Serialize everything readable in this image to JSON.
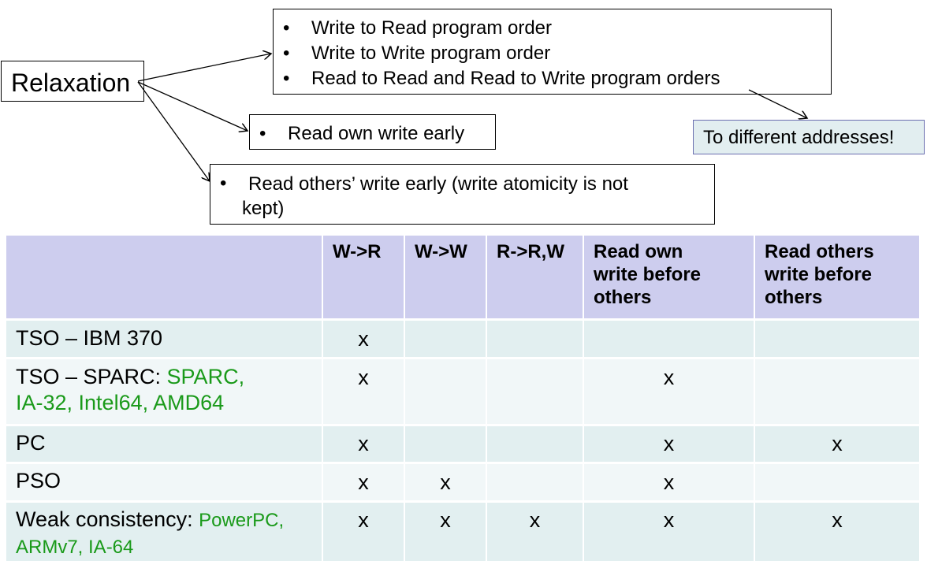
{
  "relaxation_label": "Relaxation",
  "bullet_char": "•",
  "box1": {
    "items": [
      "Write to Read program order",
      "Write to Write program order",
      "Read to Read and Read to Write program orders"
    ]
  },
  "box2": {
    "items": [
      "Read own write early"
    ]
  },
  "box3": {
    "line1": "Read others’ write early (write atomicity is not",
    "line2": "kept)"
  },
  "note": "To different addresses!",
  "colors": {
    "header_bg": "#cdcdee",
    "row_dark": "#e2eff0",
    "row_light": "#f1f7f8",
    "highlight_green": "#1a9a1a",
    "note_bg": "#e2eef0"
  },
  "table": {
    "headers": [
      "",
      "W->R",
      "W->W",
      "R->R,W",
      "Read own write before others",
      "Read others write before others"
    ],
    "header_lines": {
      "col4": [
        "Read own",
        "write before",
        "others"
      ],
      "col5": [
        "Read others",
        "write before",
        "others"
      ]
    },
    "rows": [
      {
        "label": "TSO – IBM 370",
        "marks": [
          "x",
          "",
          "",
          "",
          ""
        ]
      },
      {
        "label": "TSO – SPARC: ",
        "label_green": "SPARC,",
        "label2_green": "IA-32, Intel64, AMD64",
        "marks": [
          "x",
          "",
          "",
          "x",
          ""
        ]
      },
      {
        "label": "PC",
        "marks": [
          "x",
          "",
          "",
          "x",
          "x"
        ]
      },
      {
        "label": "PSO",
        "marks": [
          "x",
          "x",
          "",
          "x",
          ""
        ]
      },
      {
        "label": "Weak consistency: ",
        "label_green": "PowerPC,",
        "label2_green": "ARMv7, IA-64",
        "marks": [
          "x",
          "x",
          "x",
          "x",
          "x"
        ]
      }
    ]
  }
}
